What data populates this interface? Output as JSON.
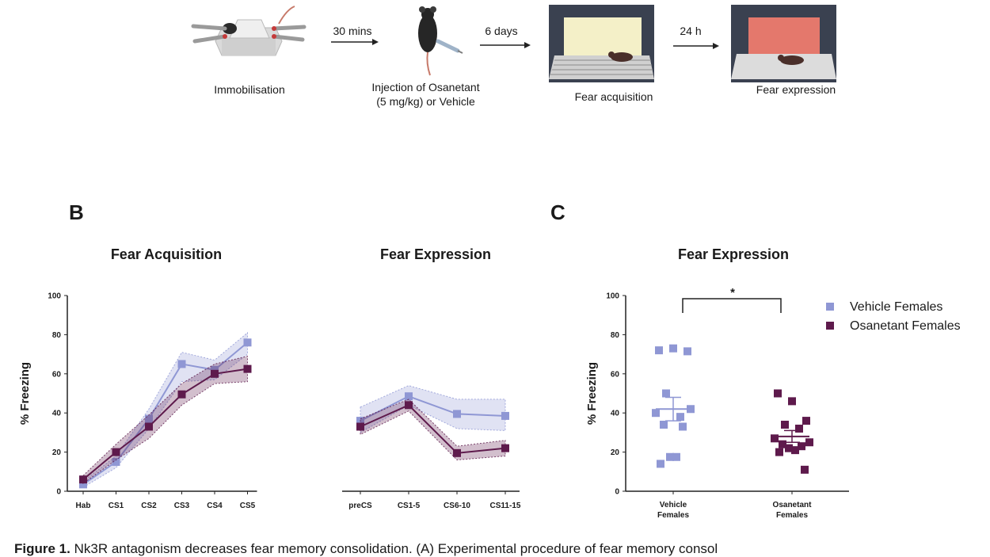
{
  "procedure": {
    "steps": [
      {
        "label": "Immobilisation",
        "icon": "immobilised-mouse-icon"
      },
      {
        "label": "Injection of Osanetant\n(5 mg/kg) or Vehicle",
        "icon": "injected-mouse-icon"
      },
      {
        "label": "Fear acquisition",
        "icon": "conditioning-chamber-icon"
      },
      {
        "label": "Fear expression",
        "icon": "test-chamber-icon"
      }
    ],
    "intervals": [
      "30 mins",
      "6 days",
      "24 h"
    ]
  },
  "panels": {
    "b_letter": "B",
    "c_letter": "C"
  },
  "colors": {
    "vehicle": "#8f97d4",
    "osanetant": "#5e1a4c"
  },
  "chart_data": [
    {
      "type": "line",
      "title": "Fear Acquisition",
      "ylabel": "% Freezing",
      "ylim": [
        0,
        100
      ],
      "yticks": [
        0,
        20,
        40,
        60,
        80,
        100
      ],
      "categories": [
        "Hab",
        "CS1",
        "CS2",
        "CS3",
        "CS4",
        "CS5"
      ],
      "series": [
        {
          "name": "Vehicle Females",
          "values": [
            3.5,
            15,
            37,
            65,
            62,
            76
          ],
          "band": [
            [
              2,
              5
            ],
            [
              12,
              18
            ],
            [
              32,
              42
            ],
            [
              56,
              71
            ],
            [
              57,
              67
            ],
            [
              70,
              81
            ]
          ]
        },
        {
          "name": "Osanetant Females",
          "values": [
            6,
            20,
            33,
            49.5,
            60,
            62.5
          ],
          "band": [
            [
              4,
              8
            ],
            [
              16,
              24
            ],
            [
              27,
              39
            ],
            [
              44,
              55
            ],
            [
              55,
              65
            ],
            [
              56,
              69
            ]
          ]
        }
      ]
    },
    {
      "type": "line",
      "title": "Fear Expression",
      "categories": [
        "preCS",
        "CS1-5",
        "CS6-10",
        "CS11-15"
      ],
      "ylim": [
        0,
        100
      ],
      "series": [
        {
          "name": "Vehicle Females",
          "values": [
            36,
            48.5,
            39.5,
            38.5
          ],
          "band": [
            [
              30,
              43
            ],
            [
              44,
              54
            ],
            [
              32,
              47
            ],
            [
              31,
              47
            ]
          ]
        },
        {
          "name": "Osanetant Females",
          "values": [
            33,
            44,
            19.5,
            22
          ],
          "band": [
            [
              29,
              37
            ],
            [
              41,
              47
            ],
            [
              16,
              23
            ],
            [
              18,
              26
            ]
          ]
        }
      ]
    },
    {
      "type": "scatter",
      "title": "Fear Expression",
      "ylabel": "% Freezing",
      "ylim": [
        0,
        100
      ],
      "yticks": [
        0,
        20,
        40,
        60,
        80,
        100
      ],
      "categories": [
        "Vehicle\nFemales",
        "Osanetant\nFemales"
      ],
      "legend": [
        "Vehicle Females",
        "Osanetant Females"
      ],
      "legend_position": "top-right",
      "significance": "*",
      "groups": [
        {
          "name": "Vehicle Females",
          "points": [
            72,
            73,
            71.5,
            50,
            38,
            40,
            42,
            34,
            33,
            17.5,
            17.5,
            14
          ],
          "mean": 42,
          "sem": [
            36,
            48
          ]
        },
        {
          "name": "Osanetant Females",
          "points": [
            50,
            46,
            36,
            34,
            32,
            27,
            25,
            24,
            23,
            22,
            21,
            20,
            11
          ],
          "mean": 28,
          "sem": [
            25,
            31
          ]
        }
      ]
    }
  ],
  "caption": {
    "bold": "Figure 1.",
    "text": " Nk3R antagonism decreases fear memory consolidation. (A) Experimental procedure of fear memory consol"
  }
}
